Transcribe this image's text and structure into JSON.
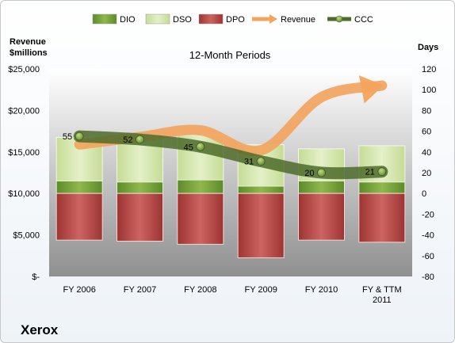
{
  "chart_data": {
    "type": "bar",
    "title": "12-Month Periods",
    "company": "Xerox",
    "left_axis": {
      "title_line1": "Revenue",
      "title_line2": "$millions",
      "ylim": [
        0,
        25000
      ],
      "ticks": [
        0,
        5000,
        10000,
        15000,
        20000,
        25000
      ],
      "tick_labels": [
        "$-",
        "$5,000",
        "$10,000",
        "$15,000",
        "$20,000",
        "$25,000"
      ]
    },
    "right_axis": {
      "title": "Days",
      "ylim": [
        -80,
        120
      ],
      "ticks": [
        -80,
        -60,
        -40,
        -20,
        0,
        20,
        40,
        60,
        80,
        100,
        120
      ],
      "tick_labels": [
        "-80",
        "-60",
        "-40",
        "-20",
        "0",
        "20",
        "40",
        "60",
        "80",
        "100",
        "120"
      ]
    },
    "categories": [
      "FY 2006",
      "FY 2007",
      "FY 2008",
      "FY 2009",
      "FY 2010",
      "FY & TTM 2011"
    ],
    "category_lines": [
      [
        "FY 2006"
      ],
      [
        "FY 2007"
      ],
      [
        "FY 2008"
      ],
      [
        "FY 2009"
      ],
      [
        "FY 2010"
      ],
      [
        "FY & TTM",
        "2011"
      ]
    ],
    "legend_position": "top",
    "grid": false,
    "series": [
      {
        "name": "DIO",
        "type": "stacked-bar",
        "axis": "days",
        "color": "#77a03a",
        "values": [
          12,
          11,
          13,
          7,
          12,
          11
        ]
      },
      {
        "name": "DSO",
        "type": "stacked-bar",
        "axis": "days",
        "color": "#cfe3a5",
        "values": [
          42,
          46,
          43,
          40,
          31,
          35
        ]
      },
      {
        "name": "DPO",
        "type": "stacked-bar",
        "axis": "days",
        "color": "#b94845",
        "values": [
          -45,
          -46,
          -49,
          -62,
          -45,
          -47
        ]
      },
      {
        "name": "Revenue",
        "type": "arrow-line",
        "axis": "revenue",
        "color": "#f3a35c",
        "values": [
          15900,
          16800,
          17600,
          15200,
          21600,
          23000
        ]
      },
      {
        "name": "CCC",
        "type": "line",
        "axis": "days",
        "color": "#4e6b2c",
        "values": [
          55,
          52,
          45,
          31,
          20,
          21
        ],
        "data_labels": [
          "55",
          "52",
          "45",
          "31",
          "20",
          "21"
        ]
      }
    ]
  }
}
